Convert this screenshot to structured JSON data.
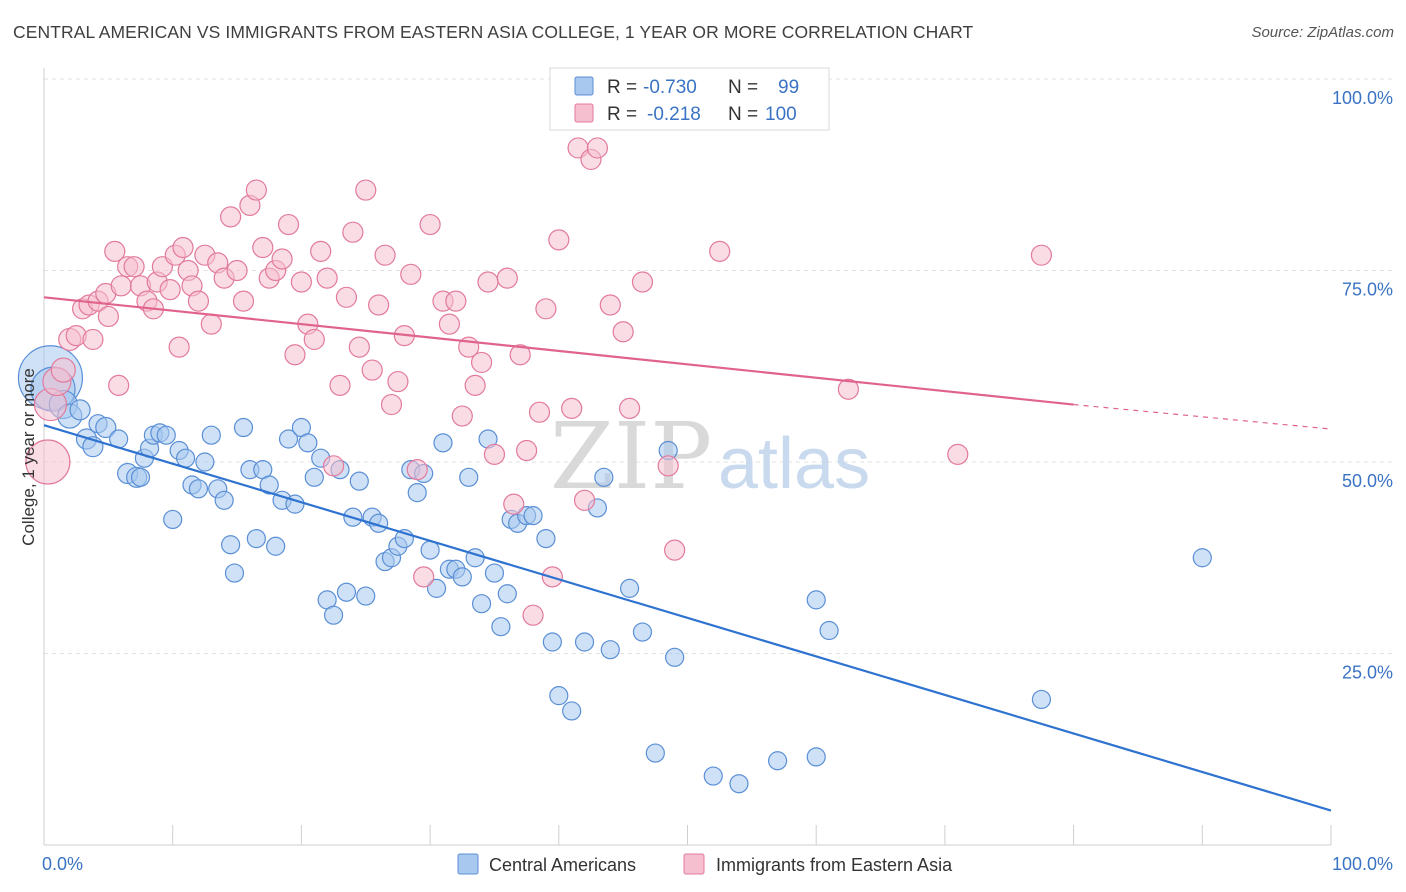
{
  "title": "CENTRAL AMERICAN VS IMMIGRANTS FROM EASTERN ASIA COLLEGE, 1 YEAR OR MORE CORRELATION CHART",
  "source": "Source: ZipAtlas.com",
  "watermark": {
    "zip": "ZIP",
    "atlas": "atlas"
  },
  "legend": {
    "rows": [
      {
        "r_label": "R =",
        "r_value": "-0.730",
        "n_label": "N =",
        "n_value": "99",
        "color": "#a8c8ef",
        "stroke": "#5a8fd6"
      },
      {
        "r_label": "R =",
        "r_value": "-0.218",
        "n_label": "N =",
        "n_value": "100",
        "color": "#f6bfd0",
        "stroke": "#e27a9c"
      }
    ]
  },
  "bottom_legend": [
    {
      "label": "Central Americans",
      "color": "#a8c8ef",
      "stroke": "#5a8fd6"
    },
    {
      "label": "Immigrants from Eastern Asia",
      "color": "#f6bfd0",
      "stroke": "#e27a9c"
    }
  ],
  "chart_data": {
    "type": "scatter",
    "title": "CENTRAL AMERICAN VS IMMIGRANTS FROM EASTERN ASIA COLLEGE, 1 YEAR OR MORE CORRELATION CHART",
    "xlabel": "",
    "ylabel": "College, 1 year or more",
    "xlim": [
      0,
      100
    ],
    "ylim": [
      0,
      100
    ],
    "x_ticks": [
      "0.0%",
      "100.0%"
    ],
    "y_ticks": [
      "25.0%",
      "50.0%",
      "75.0%",
      "100.0%"
    ],
    "grid": "horizontal dashed",
    "legend_position": "top-center",
    "series": [
      {
        "name": "Central Americans",
        "color": "#5a8fd6",
        "fill": "#a8c8ef",
        "trend": {
          "x": [
            0,
            100
          ],
          "y": [
            54.8,
            4.5
          ]
        },
        "points": [
          [
            0.5,
            61,
            32
          ],
          [
            0.7,
            59.5,
            22
          ],
          [
            1.5,
            57.5,
            14
          ],
          [
            2,
            56,
            12
          ],
          [
            2.8,
            56.8,
            10
          ],
          [
            3.3,
            53,
            10
          ],
          [
            3.8,
            52,
            10
          ],
          [
            4.2,
            55,
            9
          ],
          [
            4.8,
            54.5,
            10
          ],
          [
            5.8,
            53,
            9
          ],
          [
            6.5,
            48.5,
            10
          ],
          [
            7.2,
            48,
            10
          ],
          [
            7.5,
            48,
            9
          ],
          [
            7.8,
            50.5,
            9
          ],
          [
            8.2,
            51.8,
            9
          ],
          [
            8.5,
            53.5,
            9
          ],
          [
            9,
            53.8,
            9
          ],
          [
            9.5,
            53.5,
            9
          ],
          [
            10,
            42.5,
            9
          ],
          [
            10.5,
            51.5,
            9
          ],
          [
            11,
            50.5,
            9
          ],
          [
            11.5,
            47,
            9
          ],
          [
            12,
            46.5,
            9
          ],
          [
            12.5,
            50,
            9
          ],
          [
            13,
            53.5,
            9
          ],
          [
            13.5,
            46.5,
            9
          ],
          [
            14,
            45,
            9
          ],
          [
            14.5,
            39.2,
            9
          ],
          [
            14.8,
            35.5,
            9
          ],
          [
            15.5,
            54.5,
            9
          ],
          [
            16,
            49,
            9
          ],
          [
            16.5,
            40,
            9
          ],
          [
            17,
            49,
            9
          ],
          [
            17.5,
            47,
            9
          ],
          [
            18,
            39,
            9
          ],
          [
            18.5,
            45,
            9
          ],
          [
            19,
            53,
            9
          ],
          [
            19.5,
            44.5,
            9
          ],
          [
            20,
            54.5,
            9
          ],
          [
            20.5,
            52.5,
            9
          ],
          [
            21,
            48,
            9
          ],
          [
            21.5,
            50.5,
            9
          ],
          [
            22,
            32,
            9
          ],
          [
            22.5,
            30,
            9
          ],
          [
            23,
            49,
            9
          ],
          [
            23.5,
            33,
            9
          ],
          [
            24,
            42.8,
            9
          ],
          [
            24.5,
            47.5,
            9
          ],
          [
            25,
            32.5,
            9
          ],
          [
            25.5,
            42.8,
            9
          ],
          [
            26,
            42,
            9
          ],
          [
            26.5,
            37,
            9
          ],
          [
            27,
            37.5,
            9
          ],
          [
            27.5,
            39,
            9
          ],
          [
            28,
            40,
            9
          ],
          [
            28.5,
            49,
            9
          ],
          [
            29,
            46,
            9
          ],
          [
            29.5,
            48.5,
            9
          ],
          [
            30,
            38.5,
            9
          ],
          [
            30.5,
            33.5,
            9
          ],
          [
            31,
            52.5,
            9
          ],
          [
            31.5,
            36,
            9
          ],
          [
            32,
            36,
            9
          ],
          [
            32.5,
            35,
            9
          ],
          [
            33,
            48,
            9
          ],
          [
            33.5,
            37.5,
            9
          ],
          [
            34,
            31.5,
            9
          ],
          [
            34.5,
            53,
            9
          ],
          [
            35,
            35.5,
            9
          ],
          [
            35.5,
            28.5,
            9
          ],
          [
            36,
            32.8,
            9
          ],
          [
            36.3,
            42.5,
            9
          ],
          [
            36.8,
            42,
            9
          ],
          [
            37.5,
            43,
            9
          ],
          [
            38,
            43,
            9
          ],
          [
            39,
            40,
            9
          ],
          [
            39.5,
            26.5,
            9
          ],
          [
            40,
            19.5,
            9
          ],
          [
            41,
            17.5,
            9
          ],
          [
            42,
            26.5,
            9
          ],
          [
            43,
            44,
            9
          ],
          [
            43.5,
            48,
            9
          ],
          [
            44,
            25.5,
            9
          ],
          [
            45.5,
            33.5,
            9
          ],
          [
            46.5,
            27.8,
            9
          ],
          [
            47.5,
            12,
            9
          ],
          [
            48.5,
            51.5,
            9
          ],
          [
            49,
            24.5,
            9
          ],
          [
            52,
            9,
            9
          ],
          [
            54,
            8,
            9
          ],
          [
            57,
            11,
            9
          ],
          [
            60,
            11.5,
            9
          ],
          [
            60,
            32,
            9
          ],
          [
            61,
            28,
            9
          ],
          [
            77.5,
            19,
            9
          ],
          [
            90,
            37.5,
            9
          ]
        ]
      },
      {
        "name": "Immigrants from Eastern Asia",
        "color": "#e27a9c",
        "fill": "#f6bfd0",
        "trend": {
          "x": [
            0,
            80,
            100
          ],
          "y": [
            71.5,
            57.5,
            54.3
          ]
        },
        "points": [
          [
            0.3,
            50,
            22
          ],
          [
            0.5,
            57.5,
            16
          ],
          [
            1,
            60.5,
            14
          ],
          [
            1.5,
            62,
            12
          ],
          [
            2,
            66,
            11
          ],
          [
            2.5,
            66.5,
            10
          ],
          [
            3,
            70,
            10
          ],
          [
            3.5,
            70.5,
            10
          ],
          [
            3.8,
            66,
            10
          ],
          [
            4.2,
            71,
            10
          ],
          [
            4.8,
            72,
            10
          ],
          [
            5,
            69,
            10
          ],
          [
            5.5,
            77.5,
            10
          ],
          [
            5.8,
            60,
            10
          ],
          [
            6,
            73,
            10
          ],
          [
            6.5,
            75.5,
            10
          ],
          [
            7,
            75.5,
            10
          ],
          [
            7.5,
            73,
            10
          ],
          [
            8,
            71,
            10
          ],
          [
            8.5,
            70,
            10
          ],
          [
            8.8,
            73.5,
            10
          ],
          [
            9.2,
            75.5,
            10
          ],
          [
            9.8,
            72.5,
            10
          ],
          [
            10.2,
            77,
            10
          ],
          [
            10.5,
            65,
            10
          ],
          [
            10.8,
            78,
            10
          ],
          [
            11.2,
            75,
            10
          ],
          [
            11.5,
            73,
            10
          ],
          [
            12,
            71,
            10
          ],
          [
            12.5,
            77,
            10
          ],
          [
            13,
            68,
            10
          ],
          [
            13.5,
            76,
            10
          ],
          [
            14,
            74,
            10
          ],
          [
            14.5,
            82,
            10
          ],
          [
            15,
            75,
            10
          ],
          [
            15.5,
            71,
            10
          ],
          [
            16,
            83.5,
            10
          ],
          [
            16.5,
            85.5,
            10
          ],
          [
            17,
            78,
            10
          ],
          [
            17.5,
            74,
            10
          ],
          [
            18,
            75,
            10
          ],
          [
            18.5,
            76.5,
            10
          ],
          [
            19,
            81,
            10
          ],
          [
            19.5,
            64,
            10
          ],
          [
            20,
            73.5,
            10
          ],
          [
            20.5,
            68,
            10
          ],
          [
            21,
            66,
            10
          ],
          [
            21.5,
            77.5,
            10
          ],
          [
            22,
            74,
            10
          ],
          [
            22.5,
            49.5,
            10
          ],
          [
            23,
            60,
            10
          ],
          [
            23.5,
            71.5,
            10
          ],
          [
            24,
            80,
            10
          ],
          [
            24.5,
            65,
            10
          ],
          [
            25,
            85.5,
            10
          ],
          [
            25.5,
            62,
            10
          ],
          [
            26,
            70.5,
            10
          ],
          [
            26.5,
            77,
            10
          ],
          [
            27,
            57.5,
            10
          ],
          [
            27.5,
            60.5,
            10
          ],
          [
            28,
            66.5,
            10
          ],
          [
            28.5,
            74.5,
            10
          ],
          [
            29,
            49,
            10
          ],
          [
            29.5,
            35,
            10
          ],
          [
            30,
            81,
            10
          ],
          [
            31,
            71,
            10
          ],
          [
            31.5,
            68,
            10
          ],
          [
            32,
            71,
            10
          ],
          [
            32.5,
            56,
            10
          ],
          [
            33,
            65,
            10
          ],
          [
            33.5,
            60,
            10
          ],
          [
            34,
            63,
            10
          ],
          [
            34.5,
            73.5,
            10
          ],
          [
            35,
            51,
            10
          ],
          [
            36,
            74,
            10
          ],
          [
            36.5,
            44.5,
            10
          ],
          [
            37,
            64,
            10
          ],
          [
            37.5,
            51.5,
            10
          ],
          [
            38,
            30,
            10
          ],
          [
            38.5,
            56.5,
            10
          ],
          [
            39,
            70,
            10
          ],
          [
            39.5,
            35,
            10
          ],
          [
            40,
            79,
            10
          ],
          [
            41,
            57,
            10
          ],
          [
            41.5,
            91,
            10
          ],
          [
            42,
            45,
            10
          ],
          [
            42.5,
            89.5,
            10
          ],
          [
            43,
            91,
            10
          ],
          [
            44,
            70.5,
            10
          ],
          [
            45,
            67,
            10
          ],
          [
            45.5,
            57,
            10
          ],
          [
            46.5,
            73.5,
            10
          ],
          [
            48.5,
            49.5,
            10
          ],
          [
            49,
            38.5,
            10
          ],
          [
            52.5,
            77.5,
            10
          ],
          [
            62.5,
            59.5,
            10
          ],
          [
            71,
            51,
            10
          ],
          [
            77.5,
            77,
            10
          ]
        ]
      }
    ]
  }
}
